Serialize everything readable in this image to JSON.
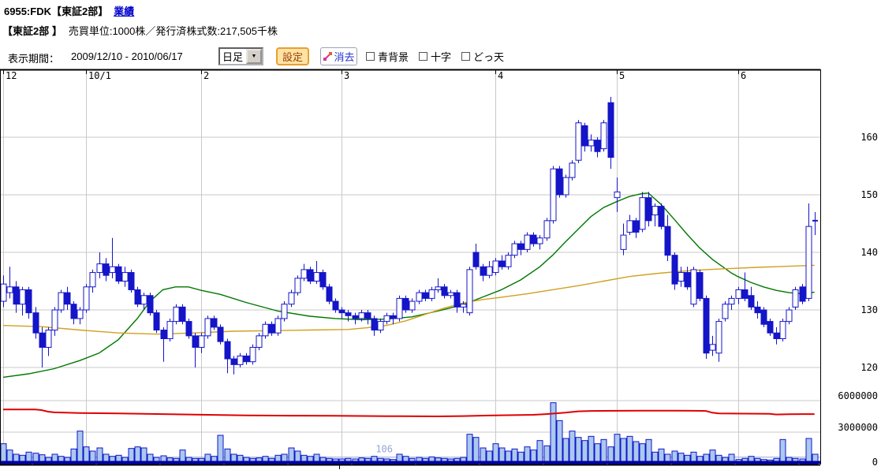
{
  "header": {
    "title": "6955:FDK【東証2部】",
    "performance_link": "業績"
  },
  "subheader": {
    "market": "【東証2部 】",
    "info": "売買単位:1000株／発行済株式数:217,505千株"
  },
  "toolbar": {
    "period_label": "表示期間：",
    "period_value": "2009/12/10 - 2010/06/17",
    "timeframe_value": "日足",
    "settings_label": "設定",
    "erase_label": "消去",
    "checkboxes": [
      {
        "label": "青背景",
        "checked": false
      },
      {
        "label": "十字",
        "checked": false
      },
      {
        "label": "どっ天",
        "checked": false
      }
    ]
  },
  "chart_data": {
    "type": "candlestick",
    "title": "6955 FDK daily candlestick chart with volume pane",
    "x_axis": {
      "month_labels": [
        "12",
        "10/1",
        "2",
        "3",
        "4",
        "5",
        "6"
      ],
      "month_start_indices": [
        0,
        13,
        31,
        53,
        77,
        96,
        115
      ]
    },
    "price_axis": {
      "ticks": [
        160,
        150,
        140,
        130,
        120
      ],
      "range": [
        116,
        170
      ]
    },
    "volume_axis": {
      "ticks": [
        {
          "label": "6000000",
          "value": 6000000
        },
        {
          "label": "3000000",
          "value": 3000000
        },
        {
          "label": "0",
          "value": 0
        }
      ]
    },
    "volume_avg_marker": {
      "label": "106",
      "value_millions": 0.62
    },
    "candles_ohlc": [
      [
        131.5,
        136,
        130.5,
        134.5
      ],
      [
        133,
        137.5,
        132,
        134
      ],
      [
        134,
        135,
        129.5,
        131
      ],
      [
        131,
        134,
        129,
        133.5
      ],
      [
        133.5,
        134,
        128.5,
        129.5
      ],
      [
        129.5,
        130.5,
        125,
        126
      ],
      [
        126,
        127,
        120,
        123.5
      ],
      [
        123.5,
        127,
        122,
        126.5
      ],
      [
        126.5,
        130.5,
        125.5,
        130
      ],
      [
        130,
        133.5,
        129.5,
        133
      ],
      [
        133,
        134,
        130,
        131
      ],
      [
        131,
        131.5,
        127.5,
        128.5
      ],
      [
        128.5,
        130.5,
        127.5,
        130
      ],
      [
        130,
        134.5,
        129.5,
        134
      ],
      [
        134,
        137,
        133,
        136.5
      ],
      [
        136.5,
        140,
        135.5,
        138
      ],
      [
        138,
        139,
        135,
        136
      ],
      [
        136.5,
        142.5,
        135.5,
        137.5
      ],
      [
        137.5,
        138,
        134.5,
        135
      ],
      [
        135,
        137.5,
        134,
        136.5
      ],
      [
        136.5,
        137,
        133,
        133.5
      ],
      [
        133.5,
        134,
        130.5,
        131
      ],
      [
        131,
        133,
        130,
        132.5
      ],
      [
        132.5,
        133,
        129,
        129.5
      ],
      [
        129.5,
        130,
        126,
        126.5
      ],
      [
        126.5,
        127,
        121,
        125
      ],
      [
        125,
        128.5,
        124.5,
        128
      ],
      [
        128,
        131,
        127.5,
        130.5
      ],
      [
        130.5,
        131,
        127.5,
        128
      ],
      [
        128,
        128.5,
        125,
        125.5
      ],
      [
        125.5,
        126,
        120,
        123.5
      ],
      [
        123.5,
        126,
        122.5,
        125.5
      ],
      [
        125.5,
        129,
        125,
        128.5
      ],
      [
        128.5,
        129,
        126.5,
        127
      ],
      [
        127,
        127.5,
        124,
        124.5
      ],
      [
        124.5,
        125,
        119,
        121.5
      ],
      [
        121.5,
        122,
        118.8,
        120.5
      ],
      [
        120.5,
        122.5,
        120,
        122
      ],
      [
        122,
        122.5,
        120.5,
        121
      ],
      [
        121,
        124,
        120.5,
        123.5
      ],
      [
        123.5,
        126,
        123,
        125.5
      ],
      [
        125.5,
        128,
        125,
        127.5
      ],
      [
        127.5,
        128,
        125.5,
        126
      ],
      [
        126,
        129,
        125.5,
        128.5
      ],
      [
        128.5,
        131.5,
        128,
        131
      ],
      [
        131,
        133.5,
        130.5,
        133
      ],
      [
        133,
        136,
        132.5,
        135.5
      ],
      [
        135.5,
        138,
        135,
        137
      ],
      [
        137,
        137.5,
        134.5,
        135
      ],
      [
        135,
        138.5,
        134.5,
        136.5
      ],
      [
        136.5,
        137,
        133.5,
        134
      ],
      [
        134,
        134.5,
        131,
        131.5
      ],
      [
        131.5,
        132,
        129.5,
        130
      ],
      [
        130,
        130.5,
        128.5,
        129.5
      ],
      [
        129.5,
        130,
        128,
        129
      ],
      [
        129,
        129.5,
        127.5,
        128.5
      ],
      [
        128.5,
        130,
        128,
        129.5
      ],
      [
        129.5,
        130,
        127.5,
        128.5
      ],
      [
        128.5,
        129,
        125.5,
        126.5
      ],
      [
        126.5,
        128.5,
        126,
        128
      ],
      [
        128,
        129.5,
        127.5,
        129
      ],
      [
        129,
        129.5,
        127.5,
        128.5
      ],
      [
        128.5,
        132.5,
        128,
        132
      ],
      [
        132,
        132.5,
        129.5,
        130
      ],
      [
        130,
        132,
        129.5,
        131.5
      ],
      [
        131.5,
        133.5,
        131,
        133
      ],
      [
        133,
        133.5,
        131.5,
        132
      ],
      [
        132,
        134,
        131.5,
        133.5
      ],
      [
        133.5,
        135.5,
        133,
        134
      ],
      [
        134,
        134.5,
        132,
        132.5
      ],
      [
        132.5,
        133.5,
        132,
        133
      ],
      [
        133,
        133.5,
        129.5,
        130.5
      ],
      [
        130.5,
        131.5,
        129.5,
        131
      ],
      [
        129.5,
        137.5,
        129,
        137
      ],
      [
        140,
        141.5,
        137,
        137.5
      ],
      [
        137.5,
        138,
        135,
        136
      ],
      [
        136,
        138.5,
        135.5,
        137.5
      ],
      [
        136.5,
        139,
        136,
        138.5
      ],
      [
        138.5,
        139.5,
        137,
        137.5
      ],
      [
        137.5,
        140,
        137,
        139.5
      ],
      [
        139.5,
        142,
        139,
        141.5
      ],
      [
        141.5,
        142,
        139.5,
        140.5
      ],
      [
        140.5,
        143.5,
        140,
        143
      ],
      [
        143,
        143.5,
        141,
        141.5
      ],
      [
        141.5,
        143,
        140.5,
        142.5
      ],
      [
        142.5,
        146,
        142,
        145.5
      ],
      [
        145.5,
        155,
        145,
        154.5
      ],
      [
        154.5,
        155,
        149.5,
        150
      ],
      [
        150,
        153.5,
        149.5,
        153
      ],
      [
        153,
        156,
        152.5,
        155.5
      ],
      [
        156,
        163,
        155.5,
        162.5
      ],
      [
        162,
        162.5,
        157.5,
        158.5
      ],
      [
        158.5,
        160.5,
        157.5,
        159.5
      ],
      [
        159.5,
        160,
        156.5,
        157.5
      ],
      [
        158,
        163,
        157.5,
        162.5
      ],
      [
        166,
        167,
        154.5,
        156.5
      ],
      [
        149.5,
        153,
        147,
        150.5
      ],
      [
        140.5,
        145,
        139.5,
        143
      ],
      [
        143.5,
        146.5,
        143,
        145.5
      ],
      [
        145.5,
        146,
        142.5,
        143.5
      ],
      [
        144,
        150.5,
        143.5,
        149.5
      ],
      [
        149.5,
        150.5,
        144.5,
        145.5
      ],
      [
        146.5,
        148.5,
        144.5,
        148
      ],
      [
        148,
        148.5,
        144,
        144.5
      ],
      [
        144.5,
        146.5,
        138.5,
        139.5
      ],
      [
        139.5,
        140,
        133.5,
        134.5
      ],
      [
        135,
        137.5,
        134,
        136.5
      ],
      [
        136.5,
        137.5,
        133.5,
        134
      ],
      [
        131,
        137.5,
        130.5,
        137
      ],
      [
        136.5,
        137,
        131.5,
        132
      ],
      [
        132,
        132.5,
        121.5,
        122.5
      ],
      [
        123,
        125.5,
        122,
        124
      ],
      [
        122.5,
        128.5,
        121,
        128
      ],
      [
        128.5,
        131.5,
        128,
        131
      ],
      [
        131,
        132.5,
        130,
        132
      ],
      [
        132,
        134,
        131,
        133.5
      ],
      [
        133.5,
        136.5,
        131.5,
        132
      ],
      [
        132.5,
        134,
        130,
        130.5
      ],
      [
        130.5,
        131.5,
        128.5,
        129.5
      ],
      [
        130,
        130.5,
        127,
        127.5
      ],
      [
        128,
        128.5,
        125.5,
        126
      ],
      [
        126,
        127,
        124,
        125
      ],
      [
        125,
        128.5,
        124.5,
        128
      ],
      [
        128,
        130.5,
        127.5,
        130
      ],
      [
        130.5,
        134,
        130,
        133.5
      ],
      [
        134,
        134.5,
        131,
        131.5
      ],
      [
        132,
        148.5,
        131.5,
        144.5
      ],
      [
        145.5,
        147,
        143,
        145.5
      ]
    ],
    "volumes_millions": [
      1.9,
      1.3,
      0.9,
      0.8,
      1.1,
      1.0,
      0.85,
      0.6,
      0.9,
      0.7,
      0.6,
      1.4,
      3.1,
      1.6,
      1.2,
      1.5,
      0.9,
      0.7,
      0.8,
      0.6,
      1.45,
      1.6,
      1.5,
      0.9,
      0.6,
      0.75,
      0.55,
      0.5,
      1.3,
      0.6,
      0.5,
      0.5,
      0.9,
      0.7,
      2.7,
      1.4,
      0.9,
      0.8,
      0.6,
      0.5,
      0.55,
      0.7,
      0.5,
      0.8,
      0.9,
      1.5,
      1.2,
      0.8,
      0.7,
      0.9,
      0.6,
      0.5,
      0.45,
      0.45,
      0.5,
      0.45,
      0.55,
      0.5,
      0.7,
      0.5,
      0.45,
      0.4,
      0.9,
      0.7,
      0.5,
      0.6,
      0.5,
      0.65,
      0.55,
      0.5,
      0.45,
      0.5,
      0.6,
      2.8,
      2.5,
      1.5,
      1.2,
      1.9,
      1.5,
      1.2,
      1.4,
      1.1,
      1.6,
      1.3,
      2.2,
      1.7,
      5.8,
      4.1,
      2.4,
      3.1,
      2.5,
      2.2,
      2.6,
      1.9,
      2.3,
      1.6,
      2.8,
      2.4,
      2.6,
      2.1,
      1.9,
      2.3,
      1.1,
      1.4,
      0.9,
      1.2,
      1.0,
      0.8,
      1.1,
      0.7,
      0.9,
      1.3,
      0.8,
      0.6,
      0.9,
      0.4,
      0.5,
      0.7,
      0.5,
      0.4,
      0.35,
      0.5,
      2.3,
      0.6,
      0.5,
      0.45,
      2.4,
      0.9
    ],
    "ma_green": [
      [
        0,
        118.3
      ],
      [
        4,
        118.9
      ],
      [
        8,
        119.8
      ],
      [
        12,
        121.2
      ],
      [
        15,
        122.5
      ],
      [
        18,
        124.8
      ],
      [
        21,
        128.5
      ],
      [
        23,
        131.5
      ],
      [
        25,
        133.5
      ],
      [
        27,
        134
      ],
      [
        29,
        134
      ],
      [
        31,
        133.4
      ],
      [
        34,
        132.7
      ],
      [
        38,
        131.3
      ],
      [
        43,
        129.8
      ],
      [
        48,
        128.9
      ],
      [
        52,
        128.5
      ],
      [
        56,
        128.3
      ],
      [
        60,
        128.4
      ],
      [
        64,
        128.8
      ],
      [
        68,
        129.8
      ],
      [
        72,
        130.9
      ],
      [
        75,
        132.2
      ],
      [
        78,
        133.5
      ],
      [
        81,
        135.2
      ],
      [
        84,
        137.5
      ],
      [
        86,
        139.5
      ],
      [
        88,
        141.8
      ],
      [
        90,
        144
      ],
      [
        92,
        146.2
      ],
      [
        94,
        147.8
      ],
      [
        96,
        148.8
      ],
      [
        98,
        149.7
      ],
      [
        100,
        150.2
      ],
      [
        101,
        150.3
      ],
      [
        103,
        148.3
      ],
      [
        105,
        145.8
      ],
      [
        107,
        143.2
      ],
      [
        109,
        140.8
      ],
      [
        111,
        138.8
      ],
      [
        113,
        137.2
      ],
      [
        114,
        136.4
      ],
      [
        115,
        135.8
      ],
      [
        117,
        134.8
      ],
      [
        119,
        134
      ],
      [
        121,
        133.4
      ],
      [
        123,
        133
      ],
      [
        125,
        132.8
      ],
      [
        126,
        132.9
      ],
      [
        127,
        133.1
      ]
    ],
    "ma_orange": [
      [
        0,
        127.3
      ],
      [
        6,
        127.1
      ],
      [
        12,
        126.5
      ],
      [
        18,
        126
      ],
      [
        24,
        125.8
      ],
      [
        30,
        126
      ],
      [
        36,
        126.3
      ],
      [
        42,
        126.4
      ],
      [
        48,
        126.5
      ],
      [
        54,
        126.6
      ],
      [
        57,
        126.9
      ],
      [
        60,
        127.3
      ],
      [
        63,
        128.1
      ],
      [
        66,
        129.2
      ],
      [
        69,
        130.3
      ],
      [
        72,
        131.2
      ],
      [
        75,
        131.8
      ],
      [
        78,
        132.2
      ],
      [
        82,
        132.8
      ],
      [
        86,
        133.5
      ],
      [
        90,
        134.2
      ],
      [
        94,
        135
      ],
      [
        98,
        135.8
      ],
      [
        102,
        136.3
      ],
      [
        106,
        136.7
      ],
      [
        110,
        137
      ],
      [
        114,
        137.2
      ],
      [
        118,
        137.4
      ],
      [
        122,
        137.55
      ],
      [
        127,
        137.75
      ]
    ],
    "red_line_millions": [
      [
        0,
        5.15
      ],
      [
        5,
        5.15
      ],
      [
        6,
        5.1
      ],
      [
        7,
        4.95
      ],
      [
        8,
        4.88
      ],
      [
        12,
        4.82
      ],
      [
        18,
        4.78
      ],
      [
        25,
        4.72
      ],
      [
        32,
        4.65
      ],
      [
        38,
        4.6
      ],
      [
        45,
        4.57
      ],
      [
        52,
        4.55
      ],
      [
        60,
        4.52
      ],
      [
        68,
        4.5
      ],
      [
        72,
        4.53
      ],
      [
        76,
        4.58
      ],
      [
        80,
        4.62
      ],
      [
        83,
        4.65
      ],
      [
        85,
        4.72
      ],
      [
        88,
        4.85
      ],
      [
        90,
        4.98
      ],
      [
        92,
        5.02
      ],
      [
        100,
        5.05
      ],
      [
        105,
        5.05
      ],
      [
        108,
        5.03
      ],
      [
        110,
        5.02
      ],
      [
        111,
        4.85
      ],
      [
        112,
        4.78
      ],
      [
        116,
        4.76
      ],
      [
        120,
        4.74
      ],
      [
        121,
        4.68
      ],
      [
        123,
        4.7
      ],
      [
        126,
        4.72
      ],
      [
        127,
        4.72
      ]
    ],
    "colors": {
      "candle": "#1414c8",
      "ma_green": "#007700",
      "ma_orange": "#d0a020",
      "volume_fill": "#a9c9ef",
      "red_line": "#e00000",
      "grid": "#c9c9c9",
      "avg_line": "#95a5d6",
      "baseline": "#0000a0",
      "link": "#0000cc"
    }
  }
}
